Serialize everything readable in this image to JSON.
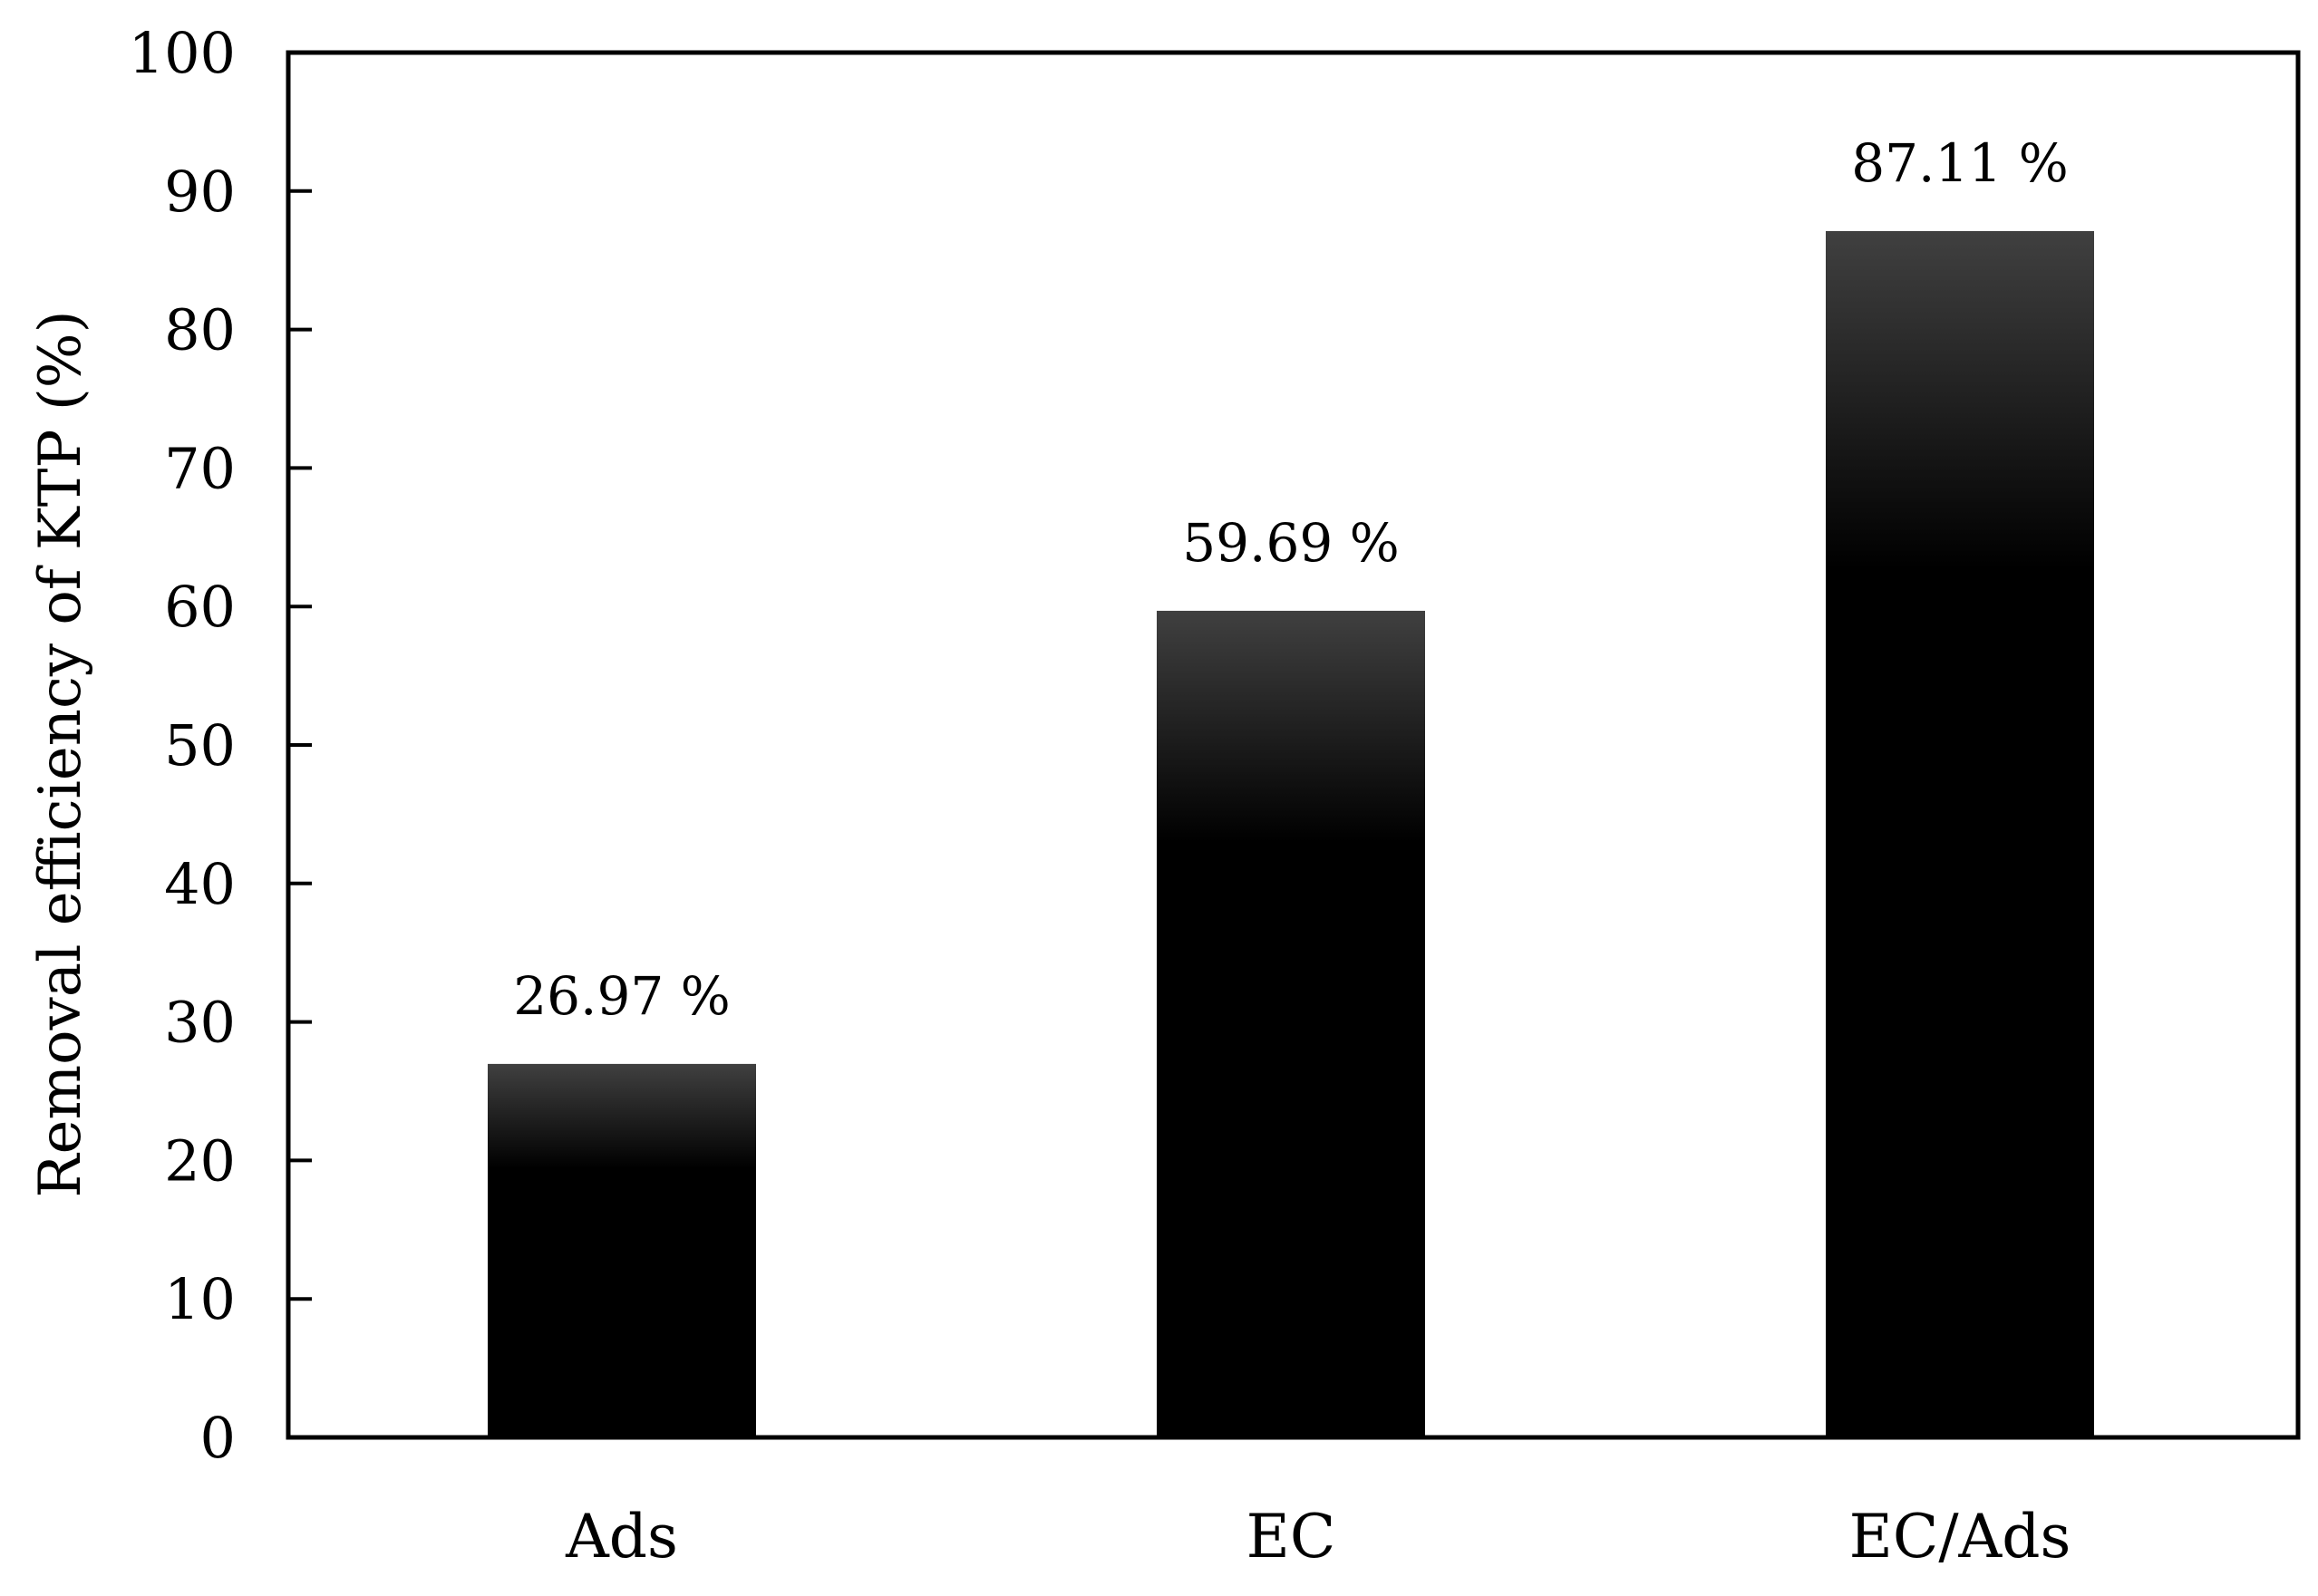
{
  "chart_data": {
    "type": "bar",
    "title": "",
    "xlabel": "",
    "ylabel": "Removal efficiency of KTP (%)",
    "categories": [
      "Ads",
      "EC",
      "EC/Ads"
    ],
    "values": [
      26.97,
      59.69,
      87.11
    ],
    "value_labels": [
      "26.97 %",
      "59.69 %",
      "87.11 %"
    ],
    "ylim": [
      0,
      100
    ],
    "yticks": [
      0,
      10,
      20,
      30,
      40,
      50,
      60,
      70,
      80,
      90,
      100
    ],
    "grid": false,
    "legend": "none",
    "colors": {
      "bar_top": "#404040",
      "bar_body": "#000000",
      "axis": "#000000",
      "text": "#000000"
    }
  }
}
